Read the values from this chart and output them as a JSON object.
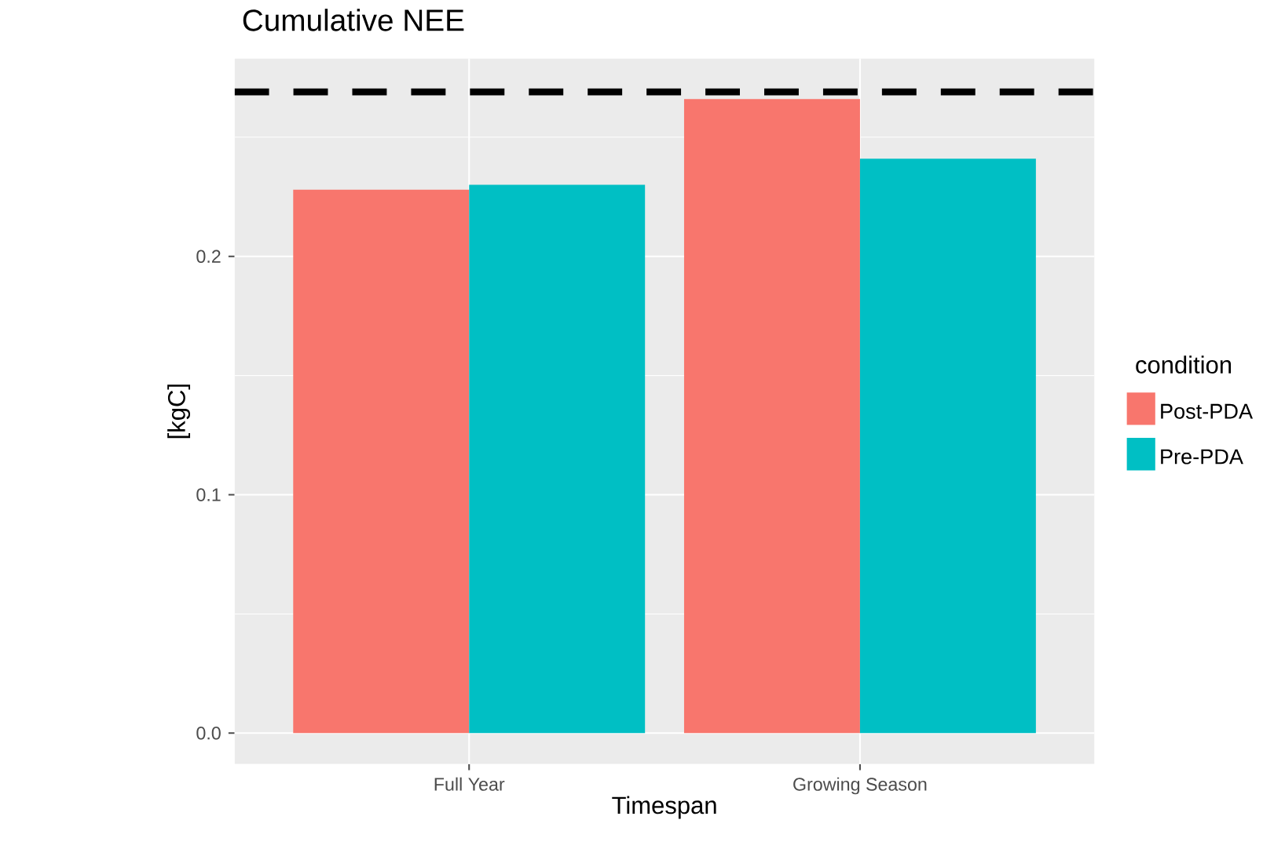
{
  "chart_data": {
    "type": "bar",
    "title": "Cumulative NEE",
    "xlabel": "Timespan",
    "ylabel": "[kgC]",
    "legend_title": "condition",
    "categories": [
      "Full Year",
      "Growing Season"
    ],
    "series": [
      {
        "name": "Post-PDA",
        "color": "#f8766d",
        "values": [
          0.228,
          0.266
        ]
      },
      {
        "name": "Pre-PDA",
        "color": "#00bfc4",
        "values": [
          0.23,
          0.241
        ]
      }
    ],
    "ylim": [
      -0.013,
      0.283
    ],
    "yticks": [
      {
        "value": 0,
        "label": "0.0"
      },
      {
        "value": 0.1,
        "label": "0.1"
      },
      {
        "value": 0.2,
        "label": "0.2"
      }
    ],
    "ref_lines": [
      {
        "axis": "y",
        "value": 0.269,
        "line_style": "dashed",
        "color": "#000000"
      }
    ],
    "grid": true,
    "legend": "right"
  }
}
